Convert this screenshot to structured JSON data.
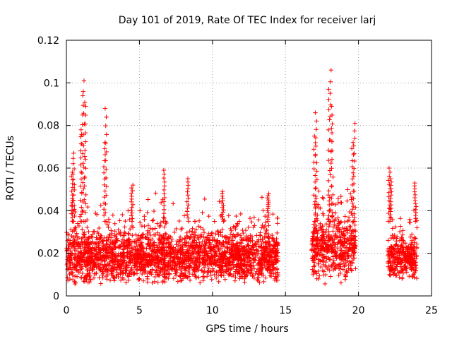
{
  "chart_data": {
    "type": "scatter",
    "title": "Day 101 of 2019, Rate Of TEC Index for receiver larj",
    "xlabel": "GPS time / hours",
    "ylabel": "ROTI / TECUs",
    "xlim": [
      0,
      25
    ],
    "ylim": [
      0,
      0.12
    ],
    "x_ticks": [
      0,
      5,
      10,
      15,
      20,
      25
    ],
    "x_tick_labels": [
      "0",
      "5",
      "10",
      "15",
      "20",
      "25"
    ],
    "y_ticks": [
      0,
      0.02,
      0.04,
      0.06,
      0.08,
      0.1,
      0.12
    ],
    "y_tick_labels": [
      "0",
      "0.02",
      "0.04",
      "0.06",
      "0.08",
      "0.1",
      "0.12"
    ],
    "grid": true,
    "marker": "plus",
    "series": [
      {
        "name": "ROTI",
        "color": "#ff0000",
        "segments": [
          {
            "start": 0.0,
            "end": 14.5,
            "base": 0.018,
            "spread": 0.009
          },
          {
            "start": 16.8,
            "end": 19.8,
            "base": 0.022,
            "spread": 0.012
          },
          {
            "start": 22.0,
            "end": 24.0,
            "base": 0.018,
            "spread": 0.008
          }
        ],
        "peaks": [
          {
            "x": 0.5,
            "y": 0.067
          },
          {
            "x": 1.2,
            "y": 0.101
          },
          {
            "x": 1.1,
            "y": 0.094
          },
          {
            "x": 1.3,
            "y": 0.089
          },
          {
            "x": 2.7,
            "y": 0.088
          },
          {
            "x": 2.6,
            "y": 0.072
          },
          {
            "x": 0.4,
            "y": 0.058
          },
          {
            "x": 1.0,
            "y": 0.078
          },
          {
            "x": 4.5,
            "y": 0.052
          },
          {
            "x": 6.7,
            "y": 0.059
          },
          {
            "x": 8.3,
            "y": 0.055
          },
          {
            "x": 10.7,
            "y": 0.049
          },
          {
            "x": 13.8,
            "y": 0.048
          },
          {
            "x": 17.1,
            "y": 0.086
          },
          {
            "x": 17.0,
            "y": 0.075
          },
          {
            "x": 18.1,
            "y": 0.106
          },
          {
            "x": 18.0,
            "y": 0.097
          },
          {
            "x": 18.2,
            "y": 0.089
          },
          {
            "x": 19.7,
            "y": 0.081
          },
          {
            "x": 19.6,
            "y": 0.072
          },
          {
            "x": 22.1,
            "y": 0.06
          },
          {
            "x": 22.2,
            "y": 0.055
          },
          {
            "x": 23.9,
            "y": 0.053
          }
        ]
      }
    ]
  }
}
